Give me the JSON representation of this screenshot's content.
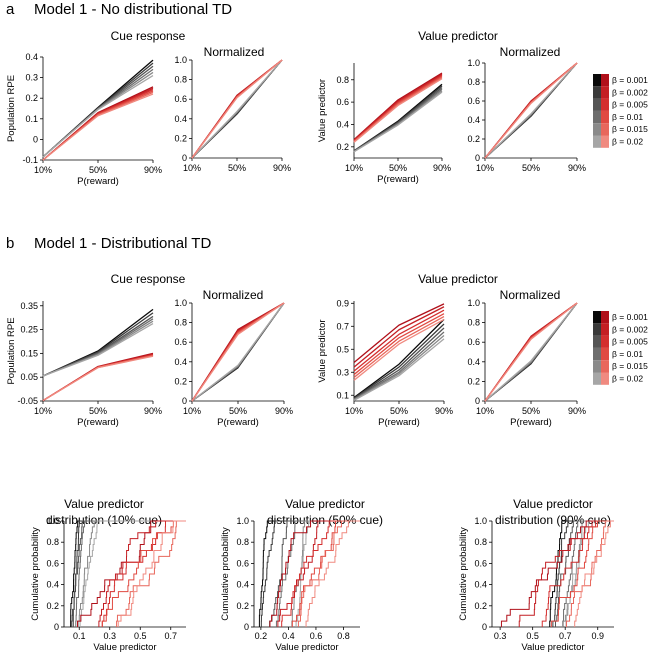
{
  "sections": [
    {
      "letter": "a",
      "title": "Model 1 - No distributional TD"
    },
    {
      "letter": "b",
      "title": "Model 1 - Distributional TD"
    }
  ],
  "group_titles": {
    "cue": "Cue response",
    "value": "Value predictor",
    "normalized": "Normalized"
  },
  "legend": {
    "symbol": "β",
    "entries": [
      "β = 0.001",
      "β = 0.002",
      "β = 0.005",
      "β = 0.01",
      "β = 0.015",
      "β = 0.02"
    ],
    "grey_colors": [
      "#0a0a0a",
      "#3a3a3a",
      "#555555",
      "#6e6e6e",
      "#8a8a8a",
      "#a6a6a6"
    ],
    "red_colors": [
      "#b0101a",
      "#c41f24",
      "#d42f2f",
      "#e04a42",
      "#e8675c",
      "#f08a80"
    ]
  },
  "colors": {
    "grey_accent": "#555555",
    "red_accent": "#e0302a"
  },
  "chart_data": [
    {
      "id": "a_cue",
      "type": "line",
      "title": "",
      "xlabel": "P(reward)",
      "ylabel": "Population RPE",
      "categories": [
        "10%",
        "50%",
        "90%"
      ],
      "yticks": [
        "-0.1",
        "0",
        "0.1",
        "0.2",
        "0.3",
        "0.4"
      ],
      "ylim": [
        -0.1,
        0.4
      ],
      "series_grey": [
        [
          -0.085,
          0.155,
          0.385
        ],
        [
          -0.085,
          0.152,
          0.37
        ],
        [
          -0.085,
          0.15,
          0.355
        ],
        [
          -0.085,
          0.148,
          0.34
        ],
        [
          -0.085,
          0.147,
          0.325
        ],
        [
          -0.085,
          0.145,
          0.31
        ]
      ],
      "series_red": [
        [
          -0.1,
          0.13,
          0.255
        ],
        [
          -0.1,
          0.128,
          0.248
        ],
        [
          -0.1,
          0.125,
          0.242
        ],
        [
          -0.1,
          0.122,
          0.235
        ],
        [
          -0.1,
          0.118,
          0.228
        ],
        [
          -0.1,
          0.115,
          0.22
        ]
      ]
    },
    {
      "id": "a_cue_norm",
      "type": "line",
      "title": "",
      "xlabel": "",
      "ylabel": "",
      "categories": [
        "10%",
        "50%",
        "90%"
      ],
      "yticks": [
        "0",
        "0.2",
        "0.4",
        "0.6",
        "0.8",
        "1.0"
      ],
      "ylim": [
        0,
        1.0
      ],
      "series_grey": [
        [
          0,
          0.45,
          1
        ],
        [
          0,
          0.455,
          1
        ],
        [
          0,
          0.46,
          1
        ],
        [
          0,
          0.465,
          1
        ],
        [
          0,
          0.47,
          1
        ],
        [
          0,
          0.475,
          1
        ]
      ],
      "series_red": [
        [
          0,
          0.64,
          1
        ],
        [
          0,
          0.635,
          1
        ],
        [
          0,
          0.63,
          1
        ],
        [
          0,
          0.625,
          1
        ],
        [
          0,
          0.62,
          1
        ],
        [
          0,
          0.615,
          1
        ]
      ]
    },
    {
      "id": "a_val",
      "type": "line",
      "title": "",
      "xlabel": "P(reward)",
      "ylabel": "Value predictor",
      "categories": [
        "10%",
        "50%",
        "90%"
      ],
      "yticks": [
        "0.2",
        "0.4",
        "0.6",
        "0.8"
      ],
      "ylim": [
        0.1,
        0.95
      ],
      "series_grey": [
        [
          0.165,
          0.43,
          0.76
        ],
        [
          0.163,
          0.422,
          0.745
        ],
        [
          0.161,
          0.415,
          0.73
        ],
        [
          0.159,
          0.408,
          0.715
        ],
        [
          0.157,
          0.4,
          0.7
        ],
        [
          0.155,
          0.395,
          0.69
        ]
      ],
      "series_red": [
        [
          0.265,
          0.62,
          0.86
        ],
        [
          0.26,
          0.61,
          0.85
        ],
        [
          0.255,
          0.6,
          0.84
        ],
        [
          0.25,
          0.59,
          0.83
        ],
        [
          0.245,
          0.58,
          0.82
        ],
        [
          0.24,
          0.57,
          0.81
        ]
      ]
    },
    {
      "id": "a_val_norm",
      "type": "line",
      "title": "",
      "xlabel": "",
      "ylabel": "",
      "categories": [
        "10%",
        "50%",
        "90%"
      ],
      "yticks": [
        "0",
        "0.2",
        "0.4",
        "0.6",
        "0.8",
        "1.0"
      ],
      "ylim": [
        0,
        1.0
      ],
      "series_grey": [
        [
          0,
          0.44,
          1
        ],
        [
          0,
          0.445,
          1
        ],
        [
          0,
          0.45,
          1
        ],
        [
          0,
          0.455,
          1
        ],
        [
          0,
          0.46,
          1
        ],
        [
          0,
          0.465,
          1
        ]
      ],
      "series_red": [
        [
          0,
          0.6,
          1
        ],
        [
          0,
          0.595,
          1
        ],
        [
          0,
          0.59,
          1
        ],
        [
          0,
          0.585,
          1
        ],
        [
          0,
          0.58,
          1
        ],
        [
          0,
          0.575,
          1
        ]
      ]
    },
    {
      "id": "b_cue",
      "type": "line",
      "title": "",
      "xlabel": "P(reward)",
      "ylabel": "Population RPE",
      "categories": [
        "10%",
        "50%",
        "90%"
      ],
      "yticks": [
        "-0.05",
        "0.05",
        "0.15",
        "0.25",
        "0.35"
      ],
      "ylim": [
        -0.05,
        0.37
      ],
      "series_grey": [
        [
          0.055,
          0.16,
          0.335
        ],
        [
          0.055,
          0.156,
          0.32
        ],
        [
          0.055,
          0.152,
          0.305
        ],
        [
          0.055,
          0.148,
          0.295
        ],
        [
          0.055,
          0.145,
          0.285
        ],
        [
          0.055,
          0.142,
          0.275
        ]
      ],
      "series_red": [
        [
          -0.048,
          0.095,
          0.15
        ],
        [
          -0.048,
          0.094,
          0.147
        ],
        [
          -0.048,
          0.093,
          0.144
        ],
        [
          -0.048,
          0.092,
          0.142
        ],
        [
          -0.048,
          0.091,
          0.14
        ],
        [
          -0.048,
          0.09,
          0.138
        ]
      ]
    },
    {
      "id": "b_cue_norm",
      "type": "line",
      "title": "",
      "xlabel": "P(reward)",
      "ylabel": "",
      "categories": [
        "10%",
        "50%",
        "90%"
      ],
      "yticks": [
        "0",
        "0.2",
        "0.4",
        "0.6",
        "0.8",
        "1.0"
      ],
      "ylim": [
        0,
        1.0
      ],
      "series_grey": [
        [
          0,
          0.34,
          1
        ],
        [
          0,
          0.345,
          1
        ],
        [
          0,
          0.35,
          1
        ],
        [
          0,
          0.355,
          1
        ],
        [
          0,
          0.36,
          1
        ],
        [
          0,
          0.365,
          1
        ]
      ],
      "series_red": [
        [
          0,
          0.73,
          1
        ],
        [
          0,
          0.72,
          1
        ],
        [
          0,
          0.71,
          1
        ],
        [
          0,
          0.7,
          1
        ],
        [
          0,
          0.69,
          1
        ],
        [
          0,
          0.68,
          1
        ]
      ]
    },
    {
      "id": "b_val",
      "type": "line",
      "title": "",
      "xlabel": "P(reward)",
      "ylabel": "Value predictor",
      "categories": [
        "10%",
        "50%",
        "90%"
      ],
      "yticks": [
        "0.1",
        "0.3",
        "0.5",
        "0.7",
        "0.9"
      ],
      "ylim": [
        0.05,
        0.92
      ],
      "series_grey": [
        [
          0.08,
          0.37,
          0.76
        ],
        [
          0.075,
          0.345,
          0.72
        ],
        [
          0.07,
          0.32,
          0.685
        ],
        [
          0.065,
          0.3,
          0.65
        ],
        [
          0.06,
          0.285,
          0.62
        ],
        [
          0.055,
          0.27,
          0.59
        ]
      ],
      "series_red": [
        [
          0.385,
          0.71,
          0.895
        ],
        [
          0.345,
          0.67,
          0.87
        ],
        [
          0.31,
          0.63,
          0.84
        ],
        [
          0.28,
          0.6,
          0.81
        ],
        [
          0.255,
          0.57,
          0.785
        ],
        [
          0.23,
          0.545,
          0.76
        ]
      ]
    },
    {
      "id": "b_val_norm",
      "type": "line",
      "title": "",
      "xlabel": "P(reward)",
      "ylabel": "",
      "categories": [
        "10%",
        "50%",
        "90%"
      ],
      "yticks": [
        "0",
        "0.2",
        "0.4",
        "0.6",
        "0.8",
        "1.0"
      ],
      "ylim": [
        0,
        1.0
      ],
      "series_grey": [
        [
          0,
          0.38,
          1
        ],
        [
          0,
          0.385,
          1
        ],
        [
          0,
          0.39,
          1
        ],
        [
          0,
          0.395,
          1
        ],
        [
          0,
          0.4,
          1
        ],
        [
          0,
          0.41,
          1
        ]
      ],
      "series_red": [
        [
          0,
          0.66,
          1
        ],
        [
          0,
          0.655,
          1
        ],
        [
          0,
          0.65,
          1
        ],
        [
          0,
          0.64,
          1
        ],
        [
          0,
          0.635,
          1
        ],
        [
          0,
          0.63,
          1
        ]
      ]
    },
    {
      "id": "cdf10",
      "type": "line",
      "title": "Value predictor distribution (10% cue)",
      "title_lines": [
        "Value predictor",
        "distribution (10% cue)"
      ],
      "xlabel": "Value predictor",
      "ylabel": "Cumulative probability",
      "xticks": [
        "0.1",
        "0.3",
        "0.5",
        "0.7"
      ],
      "xtick_values": [
        0.1,
        0.3,
        0.5,
        0.7
      ],
      "xlim": [
        0.0,
        0.8
      ],
      "yticks": [
        "0",
        "0.2",
        "0.4",
        "0.6",
        "0.8",
        "1.0"
      ],
      "ylim": [
        0,
        1.0
      ],
      "grey_ranges": [
        [
          0.04,
          0.09
        ],
        [
          0.05,
          0.1
        ],
        [
          0.06,
          0.12
        ],
        [
          0.07,
          0.14
        ],
        [
          0.09,
          0.2
        ],
        [
          0.1,
          0.22
        ]
      ],
      "red_ranges": [
        [
          0.08,
          0.58
        ],
        [
          0.15,
          0.62
        ],
        [
          0.2,
          0.68
        ],
        [
          0.25,
          0.72
        ],
        [
          0.3,
          0.75
        ],
        [
          0.35,
          0.78
        ]
      ]
    },
    {
      "id": "cdf50",
      "type": "line",
      "title": "Value predictor distribution (50% cue)",
      "title_lines": [
        "Value predictor",
        "distribution (50% cue)"
      ],
      "xlabel": "Value predictor",
      "ylabel": "Cumulative probability",
      "xticks": [
        "0.2",
        "0.4",
        "0.6",
        "0.8"
      ],
      "xtick_values": [
        0.2,
        0.4,
        0.6,
        0.8
      ],
      "xlim": [
        0.15,
        0.92
      ],
      "yticks": [
        "0",
        "0.2",
        "0.4",
        "0.6",
        "0.8",
        "1.0"
      ],
      "ylim": [
        0,
        1.0
      ],
      "grey_ranges": [
        [
          0.18,
          0.25
        ],
        [
          0.2,
          0.3
        ],
        [
          0.25,
          0.4
        ],
        [
          0.3,
          0.45
        ],
        [
          0.4,
          0.52
        ],
        [
          0.45,
          0.55
        ]
      ],
      "red_ranges": [
        [
          0.25,
          0.6
        ],
        [
          0.3,
          0.65
        ],
        [
          0.35,
          0.7
        ],
        [
          0.4,
          0.75
        ],
        [
          0.45,
          0.8
        ],
        [
          0.5,
          0.85
        ]
      ]
    },
    {
      "id": "cdf90",
      "type": "line",
      "title": "Value predictor distribution (90% cue)",
      "title_lines": [
        "Value predictor",
        "distribution (90% cue)"
      ],
      "xlabel": "Value predictor",
      "ylabel": "Cumulative probability",
      "xticks": [
        "0.3",
        "0.5",
        "0.7",
        "0.9"
      ],
      "xtick_values": [
        0.3,
        0.5,
        0.7,
        0.9
      ],
      "xlim": [
        0.25,
        1.0
      ],
      "yticks": [
        "0",
        "0.2",
        "0.4",
        "0.6",
        "0.8",
        "1.0"
      ],
      "ylim": [
        0,
        1.0
      ],
      "grey_ranges": [
        [
          0.6,
          0.68
        ],
        [
          0.62,
          0.72
        ],
        [
          0.64,
          0.75
        ],
        [
          0.66,
          0.78
        ],
        [
          0.68,
          0.82
        ],
        [
          0.7,
          0.85
        ]
      ],
      "red_ranges": [
        [
          0.3,
          0.85
        ],
        [
          0.4,
          0.88
        ],
        [
          0.5,
          0.9
        ],
        [
          0.6,
          0.92
        ],
        [
          0.7,
          0.95
        ],
        [
          0.75,
          0.98
        ]
      ]
    }
  ]
}
